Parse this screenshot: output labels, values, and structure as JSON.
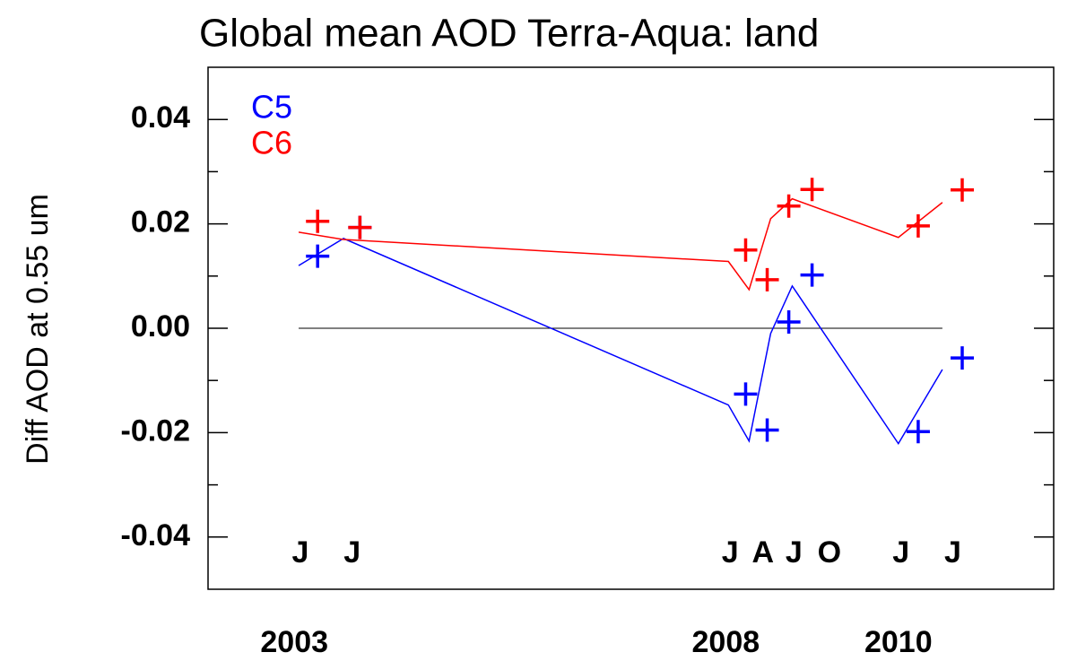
{
  "chart_data": {
    "type": "line",
    "title": "Global mean AOD Terra-Aqua: land",
    "y_label": "Diff AOD at 0.55 um",
    "xlim": [
      2002,
      2011.8
    ],
    "ylim": [
      -0.05,
      0.05
    ],
    "yticks": [
      -0.04,
      -0.02,
      {
        "value": 0,
        "label": "0.00"
      },
      0.02,
      0.04
    ],
    "yminor": [
      -0.03,
      -0.01,
      0.01,
      0.03
    ],
    "xticks": [
      {
        "value": 2003.07,
        "label": "J"
      },
      {
        "value": 2003.67,
        "label": "J"
      },
      {
        "value": 2008.05,
        "label": "J"
      },
      {
        "value": 2008.43,
        "label": "A"
      },
      {
        "value": 2008.79,
        "label": "J"
      },
      {
        "value": 2009.2,
        "label": "O"
      },
      {
        "value": 2010.03,
        "label": "J"
      },
      {
        "value": 2010.63,
        "label": "J"
      }
    ],
    "year_ticks": [
      2003,
      2008,
      2010
    ],
    "reference_line": 0,
    "x": [
      2003.27,
      2003.76,
      2008.23,
      2008.48,
      2008.73,
      2009.0,
      2010.23,
      2010.74
    ],
    "x_line": [
      2003.05,
      2003.57,
      2008.03,
      2008.27,
      2008.52,
      2008.77,
      2010.0,
      2010.51
    ],
    "series": [
      {
        "name": "C5",
        "color": "#0000ff",
        "values": [
          0.0138,
          0.0193,
          -0.0126,
          -0.0195,
          0.0012,
          0.0102,
          -0.0198,
          -0.0057
        ],
        "line_values": [
          0.012,
          0.0172,
          -0.0147,
          -0.0216,
          -0.001,
          0.0081,
          -0.0221,
          -0.0079
        ]
      },
      {
        "name": "C6",
        "color": "#ff0000",
        "values": [
          0.0205,
          0.0193,
          0.015,
          0.0093,
          0.0234,
          0.0266,
          0.0196,
          0.0265
        ],
        "line_values": [
          0.0184,
          0.017,
          0.0128,
          0.0074,
          0.021,
          0.0248,
          0.0174,
          0.0241
        ]
      }
    ]
  }
}
